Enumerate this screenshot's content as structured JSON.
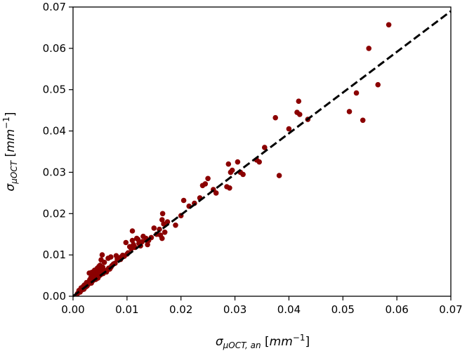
{
  "chart_data": {
    "type": "scatter",
    "xlabel": {
      "symbol": "σ",
      "subscript": "μOCT, an",
      "unit_prefix": " [",
      "unit": "mm",
      "unit_exp": "−1",
      "unit_suffix": "]"
    },
    "ylabel": {
      "symbol": "σ",
      "subscript": "μOCT",
      "unit_prefix": " [",
      "unit": "mm",
      "unit_exp": "−1",
      "unit_suffix": "]"
    },
    "xlim": [
      0,
      0.07
    ],
    "ylim": [
      0,
      0.07
    ],
    "xticks": [
      "0.00",
      "0.01",
      "0.02",
      "0.03",
      "0.04",
      "0.05",
      "0.06",
      "0.07"
    ],
    "yticks": [
      "0.00",
      "0.01",
      "0.02",
      "0.03",
      "0.04",
      "0.05",
      "0.06",
      "0.07"
    ],
    "grid": false,
    "legend": "none",
    "colors": {
      "points": "#8b0000",
      "reference_line": "#000000"
    },
    "reference_line": {
      "style": "dashed",
      "x": [
        0,
        0.07
      ],
      "y": [
        0,
        0.069
      ]
    },
    "series": [
      {
        "points": [
          [
            0.0008,
            0.0006
          ],
          [
            0.001,
            0.0009
          ],
          [
            0.0012,
            0.0011
          ],
          [
            0.0014,
            0.0013
          ],
          [
            0.0016,
            0.0015
          ],
          [
            0.0011,
            0.0014
          ],
          [
            0.0013,
            0.001
          ],
          [
            0.0018,
            0.0018
          ],
          [
            0.002,
            0.0017
          ],
          [
            0.0015,
            0.002
          ],
          [
            0.0022,
            0.0021
          ],
          [
            0.0024,
            0.0023
          ],
          [
            0.0019,
            0.0024
          ],
          [
            0.0026,
            0.0025
          ],
          [
            0.0028,
            0.0029
          ],
          [
            0.0021,
            0.0027
          ],
          [
            0.003,
            0.0031
          ],
          [
            0.0025,
            0.0033
          ],
          [
            0.0032,
            0.0034
          ],
          [
            0.0034,
            0.0032
          ],
          [
            0.0036,
            0.0037
          ],
          [
            0.0031,
            0.004
          ],
          [
            0.0038,
            0.0039
          ],
          [
            0.004,
            0.0042
          ],
          [
            0.0033,
            0.0045
          ],
          [
            0.0042,
            0.0041
          ],
          [
            0.0044,
            0.0046
          ],
          [
            0.0046,
            0.0044
          ],
          [
            0.0037,
            0.005
          ],
          [
            0.0048,
            0.0049
          ],
          [
            0.005,
            0.0051
          ],
          [
            0.0043,
            0.0055
          ],
          [
            0.0052,
            0.0053
          ],
          [
            0.0054,
            0.0057
          ],
          [
            0.0047,
            0.006
          ],
          [
            0.0056,
            0.0055
          ],
          [
            0.0058,
            0.006
          ],
          [
            0.0051,
            0.0064
          ],
          [
            0.006,
            0.0062
          ],
          [
            0.0062,
            0.0059
          ],
          [
            0.0035,
            0.0058
          ],
          [
            0.003,
            0.0056
          ],
          [
            0.004,
            0.0063
          ],
          [
            0.0045,
            0.0068
          ],
          [
            0.0055,
            0.007
          ],
          [
            0.005,
            0.0075
          ],
          [
            0.0048,
            0.0072
          ],
          [
            0.0058,
            0.0082
          ],
          [
            0.0052,
            0.0088
          ],
          [
            0.0054,
            0.01
          ],
          [
            0.0064,
            0.0064
          ],
          [
            0.0066,
            0.0068
          ],
          [
            0.0068,
            0.0066
          ],
          [
            0.007,
            0.007
          ],
          [
            0.0072,
            0.0074
          ],
          [
            0.0075,
            0.0078
          ],
          [
            0.0078,
            0.008
          ],
          [
            0.0065,
            0.0092
          ],
          [
            0.007,
            0.0095
          ],
          [
            0.008,
            0.0098
          ],
          [
            0.0082,
            0.009
          ],
          [
            0.0085,
            0.0093
          ],
          [
            0.0088,
            0.0089
          ],
          [
            0.009,
            0.0096
          ],
          [
            0.0092,
            0.0099
          ],
          [
            0.0095,
            0.0097
          ],
          [
            0.0098,
            0.013
          ],
          [
            0.01,
            0.0102
          ],
          [
            0.0102,
            0.0105
          ],
          [
            0.0105,
            0.012
          ],
          [
            0.0108,
            0.0115
          ],
          [
            0.011,
            0.0135
          ],
          [
            0.0112,
            0.0125
          ],
          [
            0.0115,
            0.0118
          ],
          [
            0.0118,
            0.014
          ],
          [
            0.012,
            0.0138
          ],
          [
            0.0122,
            0.0128
          ],
          [
            0.0125,
            0.0122
          ],
          [
            0.0128,
            0.0132
          ],
          [
            0.013,
            0.0145
          ],
          [
            0.011,
            0.0158
          ],
          [
            0.0135,
            0.014
          ],
          [
            0.0138,
            0.0125
          ],
          [
            0.014,
            0.0135
          ],
          [
            0.0145,
            0.0142
          ],
          [
            0.015,
            0.0165
          ],
          [
            0.0155,
            0.015
          ],
          [
            0.016,
            0.0162
          ],
          [
            0.0165,
            0.0185
          ],
          [
            0.0166,
            0.02
          ],
          [
            0.0168,
            0.0175
          ],
          [
            0.017,
            0.0155
          ],
          [
            0.0165,
            0.014
          ],
          [
            0.0162,
            0.0148
          ],
          [
            0.0175,
            0.018
          ],
          [
            0.019,
            0.0172
          ],
          [
            0.02,
            0.0195
          ],
          [
            0.0205,
            0.0232
          ],
          [
            0.0215,
            0.0218
          ],
          [
            0.0225,
            0.0225
          ],
          [
            0.0235,
            0.0238
          ],
          [
            0.024,
            0.0268
          ],
          [
            0.0245,
            0.0272
          ],
          [
            0.025,
            0.0285
          ],
          [
            0.026,
            0.0258
          ],
          [
            0.0265,
            0.025
          ],
          [
            0.0285,
            0.0265
          ],
          [
            0.029,
            0.0262
          ],
          [
            0.0288,
            0.032
          ],
          [
            0.0292,
            0.03
          ],
          [
            0.0295,
            0.0305
          ],
          [
            0.0305,
            0.0325
          ],
          [
            0.031,
            0.03
          ],
          [
            0.0315,
            0.0295
          ],
          [
            0.034,
            0.033
          ],
          [
            0.0345,
            0.0325
          ],
          [
            0.0355,
            0.036
          ],
          [
            0.0375,
            0.0432
          ],
          [
            0.0382,
            0.0292
          ],
          [
            0.04,
            0.0405
          ],
          [
            0.0415,
            0.0445
          ],
          [
            0.0418,
            0.0472
          ],
          [
            0.042,
            0.044
          ],
          [
            0.0435,
            0.0428
          ],
          [
            0.0512,
            0.0447
          ],
          [
            0.0525,
            0.0492
          ],
          [
            0.0537,
            0.0426
          ],
          [
            0.0548,
            0.06
          ],
          [
            0.0565,
            0.0512
          ],
          [
            0.0585,
            0.0657
          ]
        ]
      }
    ]
  }
}
